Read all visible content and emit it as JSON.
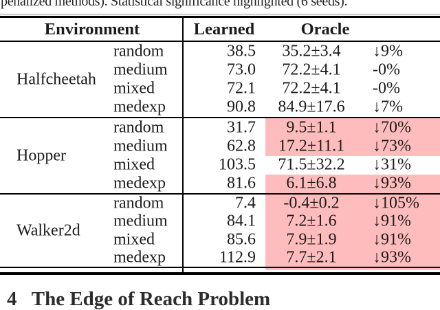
{
  "page": {
    "top_caption": "penalized methods). Statistical significance highlighted (6 seeds).",
    "bottom_heading": "4   The Edge of Reach Problem"
  },
  "table": {
    "headers": {
      "environment": "Environment",
      "learned": "Learned",
      "oracle": "Oracle"
    },
    "highlight_color": "#ffbcbc",
    "groups": [
      {
        "environment": "Halfcheetah",
        "rows": [
          {
            "dataset": "random",
            "learned": "38.5",
            "oracle": "35.2±3.4",
            "delta": "↓9%",
            "highlighted": false
          },
          {
            "dataset": "medium",
            "learned": "73.0",
            "oracle": "72.2±4.1",
            "delta": "-0%",
            "highlighted": false
          },
          {
            "dataset": "mixed",
            "learned": "72.1",
            "oracle": "72.2±4.1",
            "delta": "-0%",
            "highlighted": false
          },
          {
            "dataset": "medexp",
            "learned": "90.8",
            "oracle": "84.9±17.6",
            "delta": "↓7%",
            "highlighted": false
          }
        ]
      },
      {
        "environment": "Hopper",
        "rows": [
          {
            "dataset": "random",
            "learned": "31.7",
            "oracle": "9.5±1.1",
            "delta": "↓70%",
            "highlighted": true
          },
          {
            "dataset": "medium",
            "learned": "62.8",
            "oracle": "17.2±11.1",
            "delta": "↓73%",
            "highlighted": true
          },
          {
            "dataset": "mixed",
            "learned": "103.5",
            "oracle": "71.5±32.2",
            "delta": "↓31%",
            "highlighted": false
          },
          {
            "dataset": "medexp",
            "learned": "81.6",
            "oracle": "6.1±6.8",
            "delta": "↓93%",
            "highlighted": true
          }
        ]
      },
      {
        "environment": "Walker2d",
        "rows": [
          {
            "dataset": "random",
            "learned": "7.4",
            "oracle": "-0.4±0.2",
            "delta": "↓105%",
            "highlighted": true
          },
          {
            "dataset": "medium",
            "learned": "84.1",
            "oracle": "7.2±1.6",
            "delta": "↓91%",
            "highlighted": true
          },
          {
            "dataset": "mixed",
            "learned": "85.6",
            "oracle": "7.9±1.9",
            "delta": "↓91%",
            "highlighted": true
          },
          {
            "dataset": "medexp",
            "learned": "112.9",
            "oracle": "7.7±2.1",
            "delta": "↓93%",
            "highlighted": true
          }
        ]
      }
    ]
  }
}
